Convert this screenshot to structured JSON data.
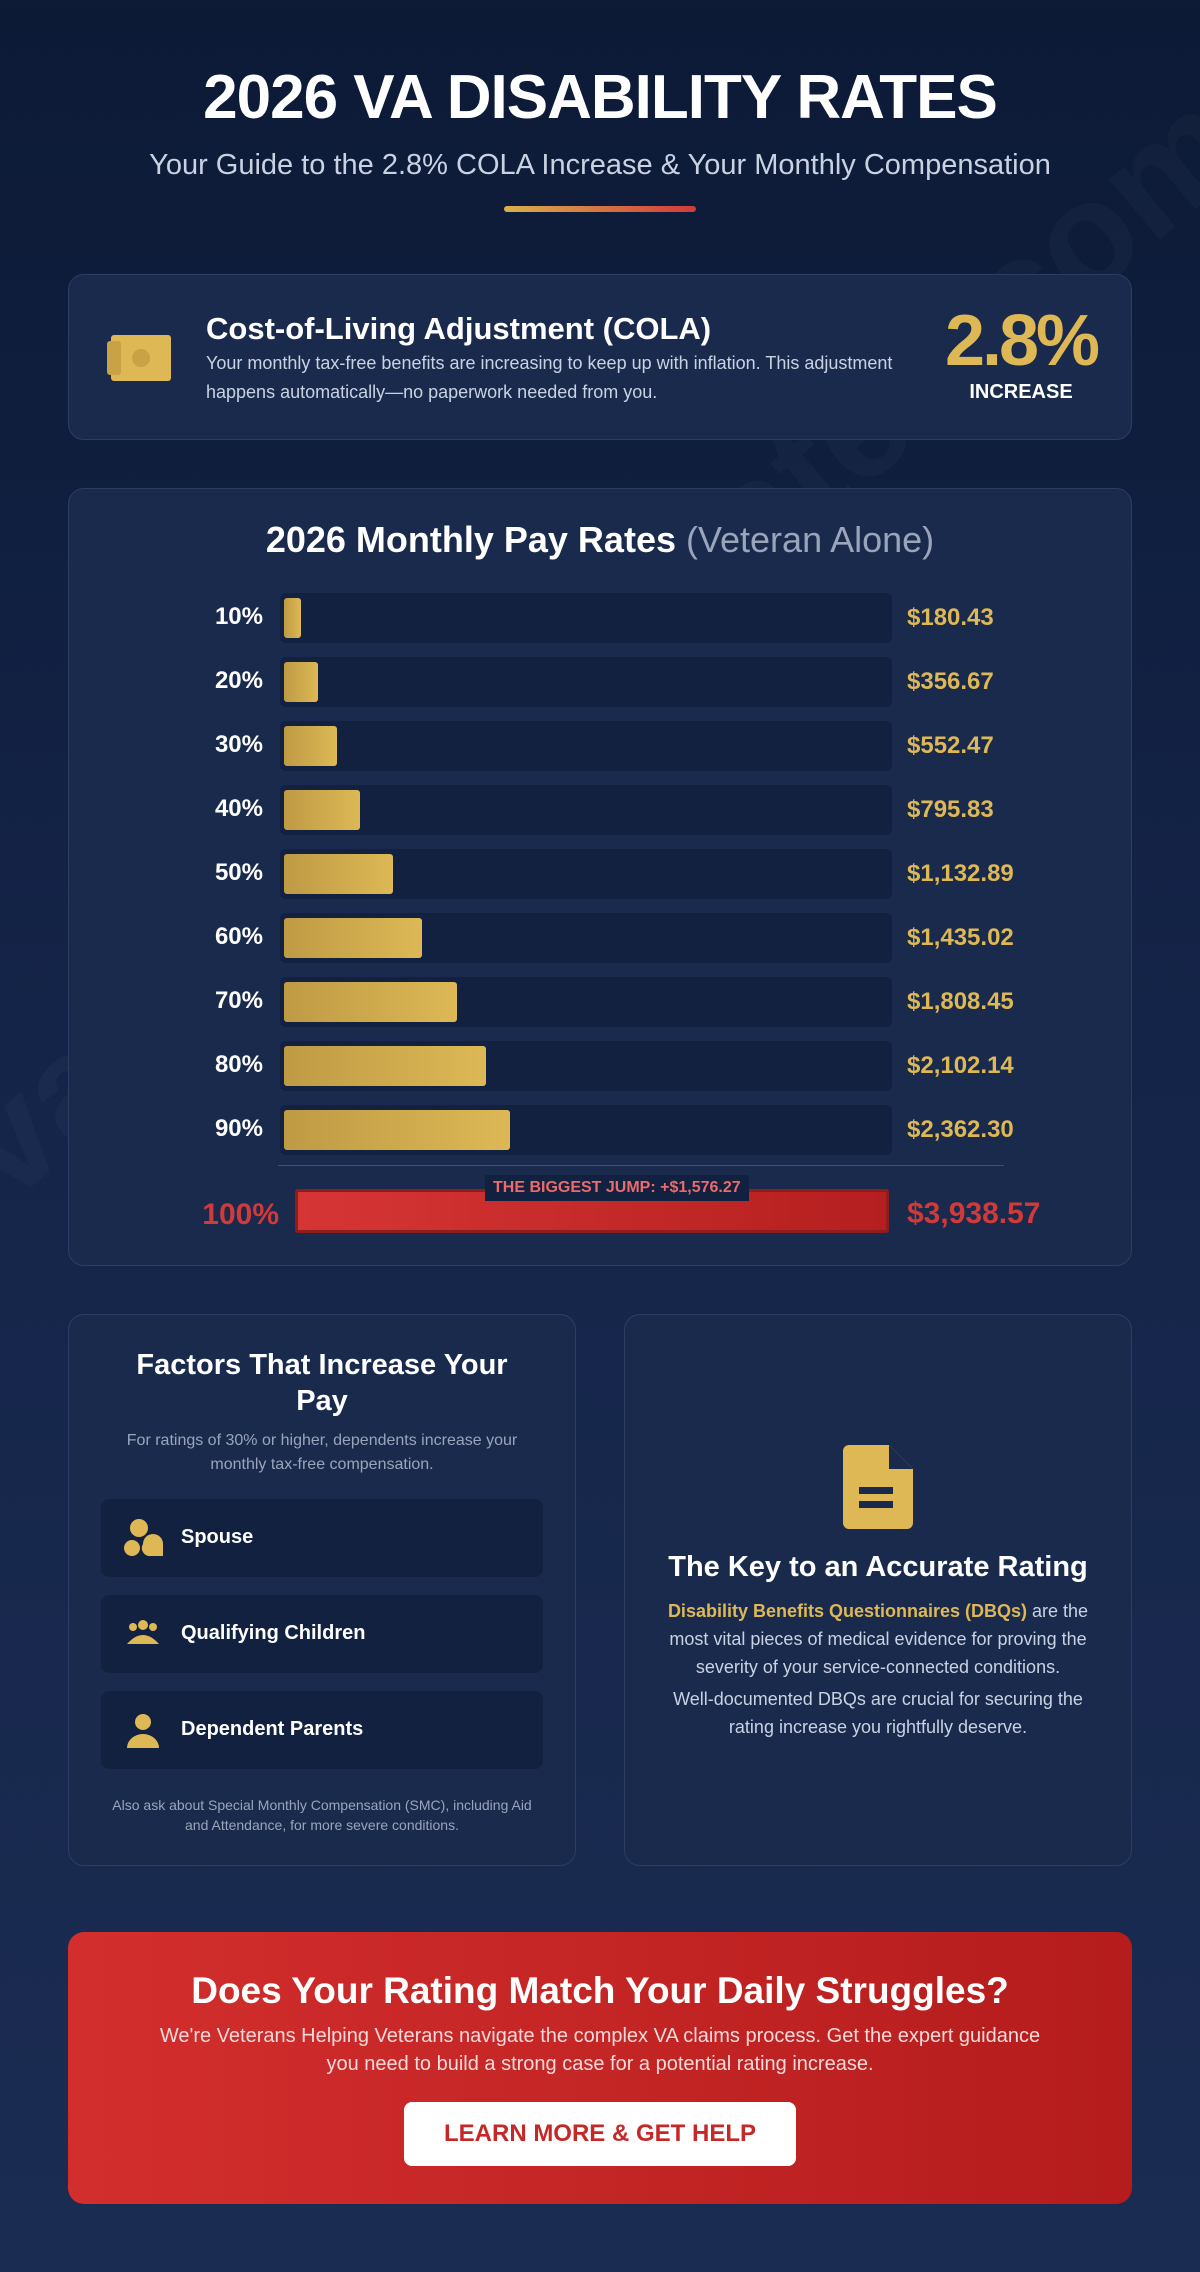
{
  "header": {
    "title": "2026 VA DISABILITY RATES",
    "subtitle": "Your Guide to the 2.8% COLA Increase & Your Monthly Compensation"
  },
  "cola": {
    "heading": "Cost-of-Living Adjustment (COLA)",
    "text": "Your monthly tax-free benefits are increasing to keep up with inflation. This adjustment happens automatically—no paperwork needed from you.",
    "stat_value": "2.8%",
    "stat_label": "INCREASE",
    "icon": "money-icon"
  },
  "chart_data": {
    "type": "bar",
    "title": "2026 Monthly Pay Rates",
    "title_suffix": "(Veteran Alone)",
    "orientation": "horizontal",
    "categories": [
      "10%",
      "20%",
      "30%",
      "40%",
      "50%",
      "60%",
      "70%",
      "80%",
      "90%",
      "100%"
    ],
    "values": [
      180.43,
      356.67,
      552.47,
      795.83,
      1132.89,
      1435.02,
      1808.45,
      2102.14,
      2362.3,
      3938.57
    ],
    "value_labels": [
      "$180.43",
      "$356.67",
      "$552.47",
      "$795.83",
      "$1,132.89",
      "$1,435.02",
      "$1,808.45",
      "$2,102.14",
      "$2,362.30",
      "$3,938.57"
    ],
    "xlim": [
      0,
      3938.57
    ],
    "annotation": "THE BIGGEST JUMP: +$1,576.27",
    "colors": {
      "bar": "#deb854",
      "highlight": "#d23a3a"
    }
  },
  "factors": {
    "title": "Factors That Increase Your Pay",
    "text": "For ratings of 30% or higher, dependents increase your monthly tax-free compensation.",
    "items": [
      {
        "label": "Spouse",
        "icon": "spouse-icon"
      },
      {
        "label": "Qualifying Children",
        "icon": "children-icon"
      },
      {
        "label": "Dependent Parents",
        "icon": "parent-icon"
      }
    ],
    "note": "Also ask about Special Monthly Compensation (SMC), including Aid and Attendance, for more severe conditions."
  },
  "key": {
    "title": "The Key to an Accurate Rating",
    "highlight": "Disability Benefits Questionnaires (DBQs)",
    "text": " are the most vital pieces of medical evidence for proving the severity of your service-connected conditions.",
    "text2": "Well-documented DBQs are crucial for securing the rating increase you rightfully deserve.",
    "icon": "document-icon"
  },
  "cta": {
    "title": "Does Your Rating Match Your Daily Struggles?",
    "text": "We're Veterans Helping Veterans navigate the complex VA claims process. Get the expert guidance you need to build a strong case for a potential rating increase.",
    "button": "LEARN MORE & GET HELP"
  },
  "colors": {
    "accent_gold": "#deb854",
    "accent_red": "#d23a3a",
    "background": "#0c1a36"
  }
}
